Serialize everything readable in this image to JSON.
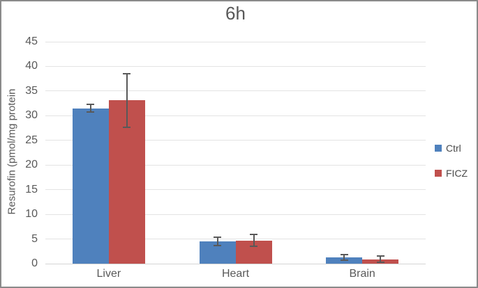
{
  "chart_data": {
    "type": "bar",
    "title": "6h",
    "categories": [
      "Liver",
      "Heart",
      "Brain"
    ],
    "series": [
      {
        "name": "Ctrl",
        "color": "#4F81BD",
        "values": [
          31.5,
          4.5,
          1.3
        ],
        "errors": [
          0.8,
          0.8,
          0.6
        ]
      },
      {
        "name": "FICZ",
        "color": "#C0504D",
        "values": [
          33.1,
          4.7,
          0.9
        ],
        "errors": [
          5.4,
          1.2,
          0.65
        ]
      }
    ],
    "xlabel": "",
    "ylabel": "Resurofin (pmol/mg protein",
    "ylim": [
      0,
      45
    ],
    "ytick_step": 5,
    "yticks": [
      0,
      5,
      10,
      15,
      20,
      25,
      30,
      35,
      40,
      45
    ],
    "grid": true,
    "legend_position": "right",
    "error_bars": true
  },
  "style": {
    "text_color": "#595959",
    "legend_text_color": "#4a4a4a",
    "gridline_color": "#e3e3e3",
    "axis_line_color": "#d4d4d4",
    "error_bar_color": "#595959",
    "frame_border_color": "#8a8a8a",
    "background_color": "#ffffff"
  }
}
